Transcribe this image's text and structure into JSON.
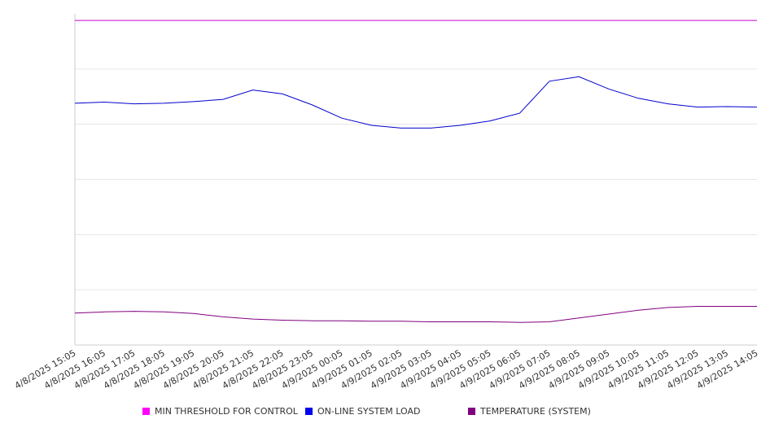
{
  "chart_data": {
    "type": "line",
    "title": "",
    "xlabel": "",
    "ylabel": "",
    "grid": true,
    "legend_position": "bottom",
    "x": [
      "4/8/2025 15:05",
      "4/8/2025 16:05",
      "4/8/2025 17:05",
      "4/8/2025 18:05",
      "4/8/2025 19:05",
      "4/8/2025 20:05",
      "4/8/2025 21:05",
      "4/8/2025 22:05",
      "4/8/2025 23:05",
      "4/9/2025 00:05",
      "4/9/2025 01:05",
      "4/9/2025 02:05",
      "4/9/2025 03:05",
      "4/9/2025 04:05",
      "4/9/2025 05:05",
      "4/9/2025 06:05",
      "4/9/2025 07:05",
      "4/9/2025 08:05",
      "4/9/2025 09:05",
      "4/9/2025 10:05",
      "4/9/2025 11:05",
      "4/9/2025 12:05",
      "4/9/2025 13:05",
      "4/9/2025 14:05"
    ],
    "ylim": [
      0,
      6
    ],
    "series": [
      {
        "name": "MIN THRESHOLD FOR CONTROL",
        "color": "#cc00cc",
        "values": [
          5.88,
          5.88,
          5.88,
          5.88,
          5.88,
          5.88,
          5.88,
          5.88,
          5.88,
          5.88,
          5.88,
          5.88,
          5.88,
          5.88,
          5.88,
          5.88,
          5.88,
          5.88,
          5.88,
          5.88,
          5.88,
          5.88,
          5.88,
          5.88
        ]
      },
      {
        "name": "ON-LINE SYSTEM LOAD",
        "color": "#0000cc",
        "values": [
          4.38,
          4.4,
          4.37,
          4.38,
          4.41,
          4.45,
          4.62,
          4.55,
          4.35,
          4.11,
          3.98,
          3.93,
          3.93,
          3.98,
          4.06,
          4.2,
          4.78,
          4.86,
          4.64,
          4.47,
          4.37,
          4.31,
          4.32,
          4.31
        ]
      },
      {
        "name": "TEMPERATURE (SYSTEM)",
        "color": "#800080",
        "values": [
          0.58,
          0.6,
          0.61,
          0.6,
          0.57,
          0.51,
          0.47,
          0.45,
          0.44,
          0.44,
          0.43,
          0.43,
          0.42,
          0.42,
          0.42,
          0.41,
          0.42,
          0.49,
          0.56,
          0.63,
          0.68,
          0.7,
          0.7,
          0.7
        ]
      }
    ]
  }
}
